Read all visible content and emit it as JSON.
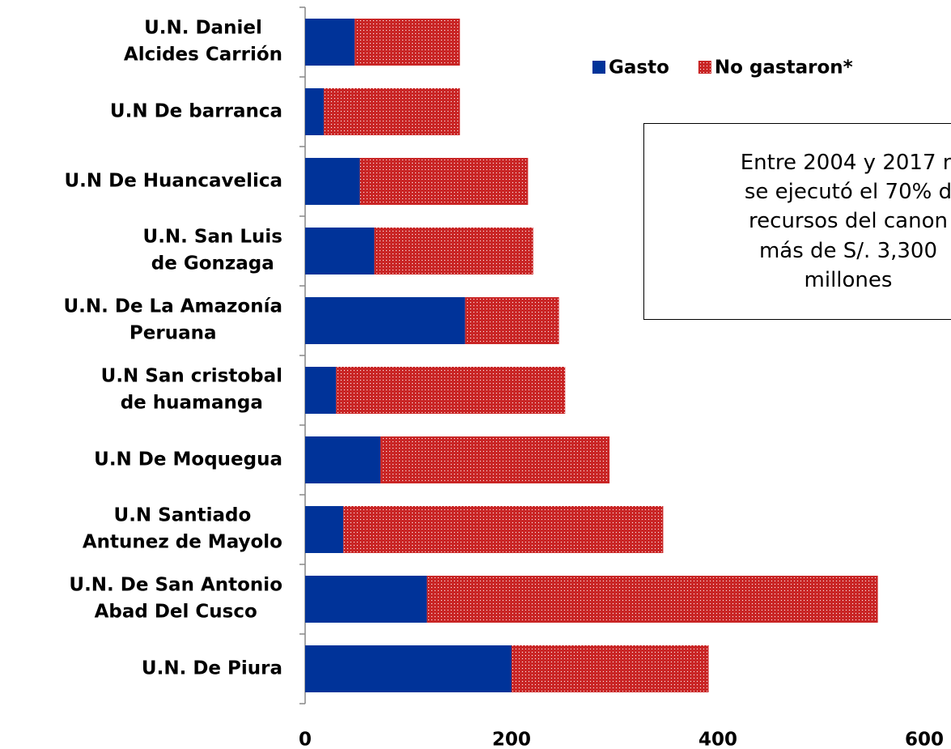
{
  "chart_data": {
    "type": "stacked-bar-horizontal",
    "categories": [
      "U.N. Daniel\nAlcides Carrión",
      "U.N De barranca",
      "U.N De Huancavelica",
      "U.N. San Luis\nde Gonzaga",
      "U.N. De La Amazonía\nPeruana",
      "U.N San cristobal\nde huamanga",
      "U.N De Moquegua",
      "U.N Santiado\nAntunez de Mayolo",
      "U.N. De San Antonio\nAbad Del Cusco",
      "U.N. De Piura"
    ],
    "series": [
      {
        "name": "Gasto",
        "color": "#003399",
        "values": [
          48,
          18,
          53,
          67,
          155,
          30,
          73,
          37,
          118,
          200
        ]
      },
      {
        "name": "No gastaron*",
        "color": "#c00000",
        "pattern": "dotted",
        "values": [
          102,
          132,
          163,
          154,
          91,
          222,
          222,
          310,
          437,
          191
        ]
      }
    ],
    "xlim": [
      0,
      600
    ],
    "xticks": [
      0,
      200,
      400,
      600
    ],
    "grid": false,
    "legend": "top-right",
    "annotation": "Entre 2004 y 2017 n\nse ejecutó el 70% d\nrecursos del canon\nmás de S/. 3,300\nmillones"
  }
}
